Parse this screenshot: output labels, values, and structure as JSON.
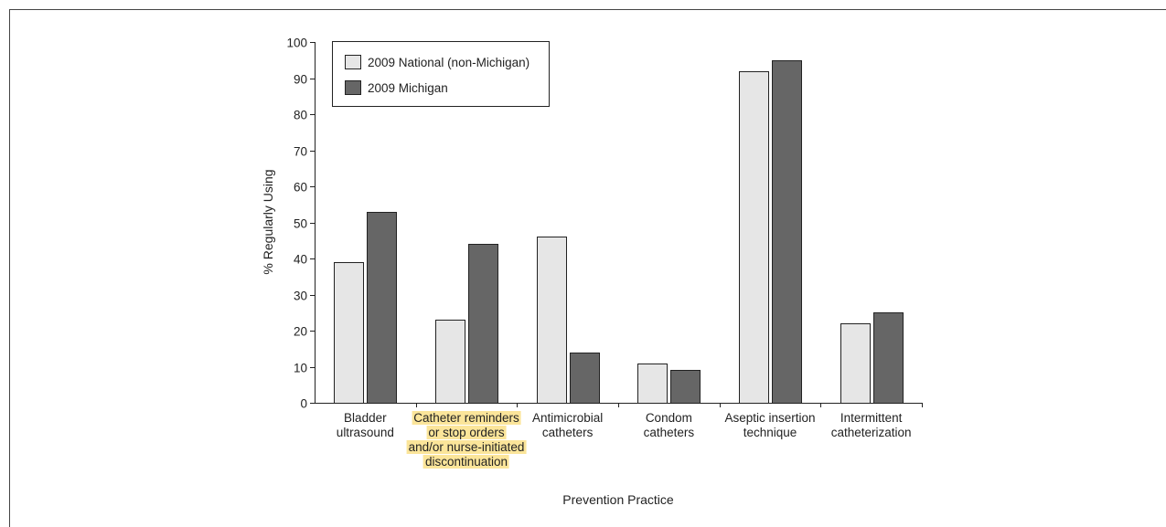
{
  "chart_data": {
    "type": "bar",
    "title": "",
    "xlabel": "Prevention Practice",
    "ylabel": "% Regularly Using",
    "ylim": [
      0,
      100
    ],
    "yticks": [
      0,
      10,
      20,
      30,
      40,
      50,
      60,
      70,
      80,
      90,
      100
    ],
    "categories": [
      {
        "lines": [
          "Bladder",
          "ultrasound"
        ],
        "highlight": false
      },
      {
        "lines": [
          "Catheter reminders",
          "or stop orders",
          "and/or nurse-initiated",
          "discontinuation"
        ],
        "highlight": true
      },
      {
        "lines": [
          "Antimicrobial",
          "catheters"
        ],
        "highlight": false
      },
      {
        "lines": [
          "Condom",
          "catheters"
        ],
        "highlight": false
      },
      {
        "lines": [
          "Aseptic insertion",
          "technique"
        ],
        "highlight": false
      },
      {
        "lines": [
          "Intermittent",
          "catheterization"
        ],
        "highlight": false
      }
    ],
    "series": [
      {
        "name": "2009 National (non-Michigan)",
        "color": "#e6e6e6",
        "values": [
          39,
          23,
          46,
          11,
          92,
          22
        ]
      },
      {
        "name": "2009 Michigan",
        "color": "#666666",
        "values": [
          53,
          44,
          14,
          9,
          95,
          25
        ]
      }
    ],
    "legend_position": "top-left",
    "grid": false,
    "highlight_color": "#fbe59a",
    "bar_outline_color": "#222222"
  }
}
